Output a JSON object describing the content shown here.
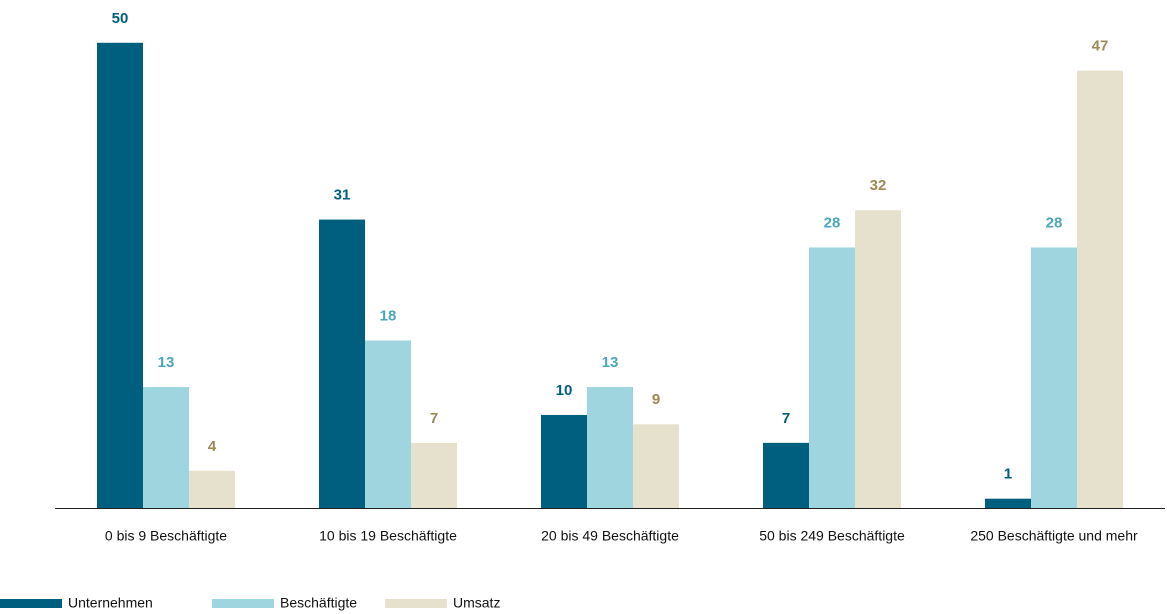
{
  "chart_data": {
    "type": "bar",
    "categories": [
      "0 bis 9 Beschäftigte",
      "10 bis 19 Beschäftigte",
      "20 bis 49 Beschäftigte",
      "50 bis 249 Beschäftigte",
      "250 Beschäftigte und mehr"
    ],
    "series": [
      {
        "name": "Unternehmen",
        "color": "#005f7f",
        "label_color": "#005f7f",
        "values": [
          50,
          31,
          10,
          7,
          1
        ]
      },
      {
        "name": "Beschäftigte",
        "color": "#9ed5df",
        "label_color": "#4aa6b8",
        "values": [
          13,
          18,
          13,
          28,
          28
        ]
      },
      {
        "name": "Umsatz",
        "color": "#e5e1cc",
        "label_color": "#9a8a55",
        "values": [
          4,
          7,
          9,
          32,
          47
        ]
      }
    ],
    "ylim": [
      0,
      54.6
    ],
    "grid": false,
    "legend": "bottom-left"
  }
}
